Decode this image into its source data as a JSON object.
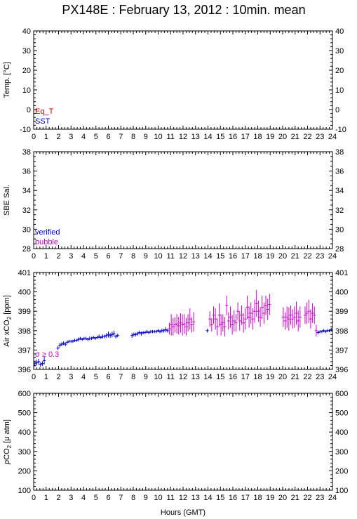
{
  "title": "PX148E : February 13, 2012 : 10min. mean",
  "xlabel": "Hours (GMT)",
  "x_ticks": [
    "0",
    "1",
    "2",
    "3",
    "4",
    "5",
    "6",
    "7",
    "8",
    "9",
    "10",
    "11",
    "12",
    "13",
    "14",
    "15",
    "16",
    "17",
    "18",
    "19",
    "20",
    "21",
    "22",
    "23",
    "24"
  ],
  "colors": {
    "eq_t": "#cc0000",
    "sst": "#0000cc",
    "verified": "#0000cc",
    "bubble": "#cc00cc",
    "sigma": "#cc00cc"
  },
  "chart_data": [
    {
      "type": "line",
      "panel": "temperature",
      "ylabel": "Temp. [°C]",
      "xlim": [
        0,
        24
      ],
      "ylim": [
        -10,
        40
      ],
      "y_ticks": [
        "40",
        "30",
        "20",
        "10",
        "0",
        "-10"
      ],
      "legend": [
        "Eq_T",
        "SST"
      ],
      "legend_placement": "bottom-left",
      "series": []
    },
    {
      "type": "line",
      "panel": "salinity",
      "ylabel": "SBE Sal.",
      "xlim": [
        0,
        24
      ],
      "ylim": [
        28,
        38
      ],
      "y_ticks": [
        "38",
        "36",
        "34",
        "32",
        "30",
        "28"
      ],
      "legend": [
        "verified",
        "bubble"
      ],
      "legend_placement": "bottom-left",
      "series": []
    },
    {
      "type": "scatter",
      "panel": "air_xco2",
      "ylabel": "Air xCO",
      "ylabel_sub": "2",
      "ylabel_unit": " [ppm]",
      "xlim": [
        0,
        24
      ],
      "ylim": [
        396,
        401
      ],
      "y_ticks": [
        "401",
        "400",
        "399",
        "398",
        "397",
        "396"
      ],
      "annotation": "σ ≥ 0.3",
      "annotation_placement": "bottom-left",
      "series": [
        {
          "style": "verified",
          "points": [
            [
              0.1,
              396.3,
              0.15
            ],
            [
              0.25,
              396.35,
              0.15
            ],
            [
              0.4,
              396.4,
              0.15
            ],
            [
              0.55,
              396.25,
              0.12
            ],
            [
              0.7,
              396.3,
              0.12
            ],
            [
              0.85,
              396.45,
              0.2
            ],
            [
              1.95,
              397.1,
              0.1
            ],
            [
              2.1,
              397.25,
              0.12
            ],
            [
              2.25,
              397.3,
              0.1
            ],
            [
              2.4,
              397.35,
              0.1
            ],
            [
              2.55,
              397.3,
              0.1
            ],
            [
              2.7,
              397.4,
              0.08
            ],
            [
              2.85,
              397.45,
              0.08
            ],
            [
              3.0,
              397.45,
              0.08
            ],
            [
              3.15,
              397.45,
              0.08
            ],
            [
              3.3,
              397.5,
              0.08
            ],
            [
              3.45,
              397.5,
              0.08
            ],
            [
              3.6,
              397.55,
              0.1
            ],
            [
              3.75,
              397.6,
              0.08
            ],
            [
              3.9,
              397.55,
              0.08
            ],
            [
              4.05,
              397.6,
              0.08
            ],
            [
              4.2,
              397.6,
              0.08
            ],
            [
              4.35,
              397.55,
              0.08
            ],
            [
              4.5,
              397.6,
              0.1
            ],
            [
              4.65,
              397.6,
              0.08
            ],
            [
              4.8,
              397.65,
              0.08
            ],
            [
              4.95,
              397.6,
              0.08
            ],
            [
              5.1,
              397.65,
              0.08
            ],
            [
              5.25,
              397.7,
              0.1
            ],
            [
              5.4,
              397.65,
              0.08
            ],
            [
              5.55,
              397.7,
              0.1
            ],
            [
              5.7,
              397.7,
              0.1
            ],
            [
              5.85,
              397.75,
              0.12
            ],
            [
              6.0,
              397.8,
              0.15
            ],
            [
              6.15,
              397.75,
              0.12
            ],
            [
              6.3,
              397.8,
              0.15
            ],
            [
              6.45,
              397.85,
              0.15
            ],
            [
              6.6,
              397.7,
              0.1
            ],
            [
              6.75,
              397.75,
              0.1
            ],
            [
              7.9,
              397.75,
              0.12
            ],
            [
              8.05,
              397.8,
              0.1
            ],
            [
              8.2,
              397.8,
              0.1
            ],
            [
              8.35,
              397.85,
              0.1
            ],
            [
              8.5,
              397.9,
              0.1
            ],
            [
              8.65,
              397.85,
              0.1
            ],
            [
              8.8,
              397.9,
              0.08
            ],
            [
              8.95,
              397.9,
              0.08
            ],
            [
              9.1,
              397.95,
              0.08
            ],
            [
              9.25,
              397.9,
              0.08
            ],
            [
              9.4,
              397.95,
              0.08
            ],
            [
              9.55,
              397.95,
              0.08
            ],
            [
              9.7,
              397.95,
              0.08
            ],
            [
              9.85,
              397.95,
              0.08
            ],
            [
              10.0,
              398.0,
              0.08
            ],
            [
              10.15,
              397.95,
              0.08
            ],
            [
              10.3,
              398.0,
              0.1
            ],
            [
              10.45,
              398.0,
              0.1
            ],
            [
              10.6,
              398.05,
              0.12
            ],
            [
              10.75,
              398.0,
              0.1
            ],
            [
              13.95,
              398.0,
              0.1
            ],
            [
              22.85,
              397.9,
              0.1
            ],
            [
              23.0,
              397.95,
              0.08
            ],
            [
              23.15,
              397.95,
              0.08
            ],
            [
              23.3,
              398.0,
              0.08
            ],
            [
              23.45,
              397.95,
              0.08
            ],
            [
              23.6,
              398.0,
              0.08
            ],
            [
              23.75,
              398.0,
              0.08
            ],
            [
              23.9,
              398.05,
              0.1
            ]
          ]
        },
        {
          "style": "bubble",
          "points": [
            [
              10.9,
              398.1,
              0.3
            ],
            [
              11.05,
              398.3,
              0.55
            ],
            [
              11.2,
              398.2,
              0.45
            ],
            [
              11.35,
              398.3,
              0.4
            ],
            [
              11.5,
              398.35,
              0.5
            ],
            [
              11.65,
              398.25,
              0.45
            ],
            [
              11.8,
              398.4,
              0.5
            ],
            [
              11.95,
              398.3,
              0.55
            ],
            [
              12.1,
              398.35,
              0.5
            ],
            [
              12.25,
              398.2,
              0.45
            ],
            [
              12.4,
              398.4,
              0.45
            ],
            [
              12.55,
              398.6,
              0.55
            ],
            [
              12.7,
              398.3,
              0.4
            ],
            [
              12.85,
              398.45,
              0.5
            ],
            [
              14.15,
              398.6,
              0.4
            ],
            [
              14.3,
              398.3,
              0.35
            ],
            [
              14.45,
              398.8,
              0.45
            ],
            [
              14.6,
              398.6,
              0.55
            ],
            [
              14.75,
              398.2,
              0.45
            ],
            [
              14.9,
              398.8,
              0.6
            ],
            [
              15.05,
              398.3,
              0.55
            ],
            [
              15.2,
              398.4,
              0.45
            ],
            [
              15.35,
              398.2,
              0.5
            ],
            [
              15.5,
              399.3,
              0.5
            ],
            [
              15.65,
              398.5,
              0.45
            ],
            [
              15.8,
              398.7,
              0.55
            ],
            [
              15.95,
              398.3,
              0.5
            ],
            [
              16.1,
              398.5,
              0.55
            ],
            [
              16.25,
              398.4,
              0.45
            ],
            [
              16.4,
              399.0,
              0.45
            ],
            [
              16.55,
              398.5,
              0.5
            ],
            [
              16.7,
              398.8,
              0.5
            ],
            [
              16.85,
              398.4,
              0.5
            ],
            [
              17.0,
              398.6,
              0.55
            ],
            [
              17.15,
              399.2,
              0.6
            ],
            [
              17.3,
              398.7,
              0.55
            ],
            [
              17.45,
              398.9,
              0.55
            ],
            [
              17.6,
              398.6,
              0.55
            ],
            [
              17.75,
              399.0,
              0.6
            ],
            [
              17.9,
              399.4,
              0.7
            ],
            [
              18.05,
              399.0,
              0.55
            ],
            [
              18.2,
              398.7,
              0.5
            ],
            [
              18.35,
              399.2,
              0.6
            ],
            [
              18.5,
              398.9,
              0.55
            ],
            [
              18.65,
              399.3,
              0.5
            ],
            [
              18.8,
              399.1,
              0.55
            ],
            [
              18.95,
              399.35,
              0.55
            ],
            [
              20.05,
              398.7,
              0.5
            ],
            [
              20.2,
              398.5,
              0.45
            ],
            [
              20.35,
              398.7,
              0.55
            ],
            [
              20.5,
              398.6,
              0.6
            ],
            [
              20.65,
              398.8,
              0.5
            ],
            [
              20.8,
              398.6,
              0.5
            ],
            [
              20.95,
              398.7,
              0.55
            ],
            [
              21.1,
              398.9,
              0.6
            ],
            [
              21.25,
              398.5,
              0.55
            ],
            [
              21.4,
              398.7,
              0.55
            ],
            [
              21.8,
              398.8,
              0.45
            ],
            [
              21.95,
              398.9,
              0.55
            ],
            [
              22.1,
              399.0,
              0.6
            ],
            [
              22.25,
              398.6,
              0.5
            ],
            [
              22.4,
              398.9,
              0.5
            ],
            [
              22.55,
              398.8,
              0.45
            ],
            [
              22.7,
              398.0,
              0.3
            ]
          ]
        }
      ]
    },
    {
      "type": "line",
      "panel": "pco2",
      "ylabel_prefix": "p",
      "ylabel": "CO",
      "ylabel_sub": "2",
      "ylabel_unit": " [μ atm]",
      "xlim": [
        0,
        24
      ],
      "ylim": [
        100,
        600
      ],
      "y_ticks": [
        "600",
        "500",
        "400",
        "300",
        "200",
        "100"
      ],
      "series": []
    }
  ]
}
